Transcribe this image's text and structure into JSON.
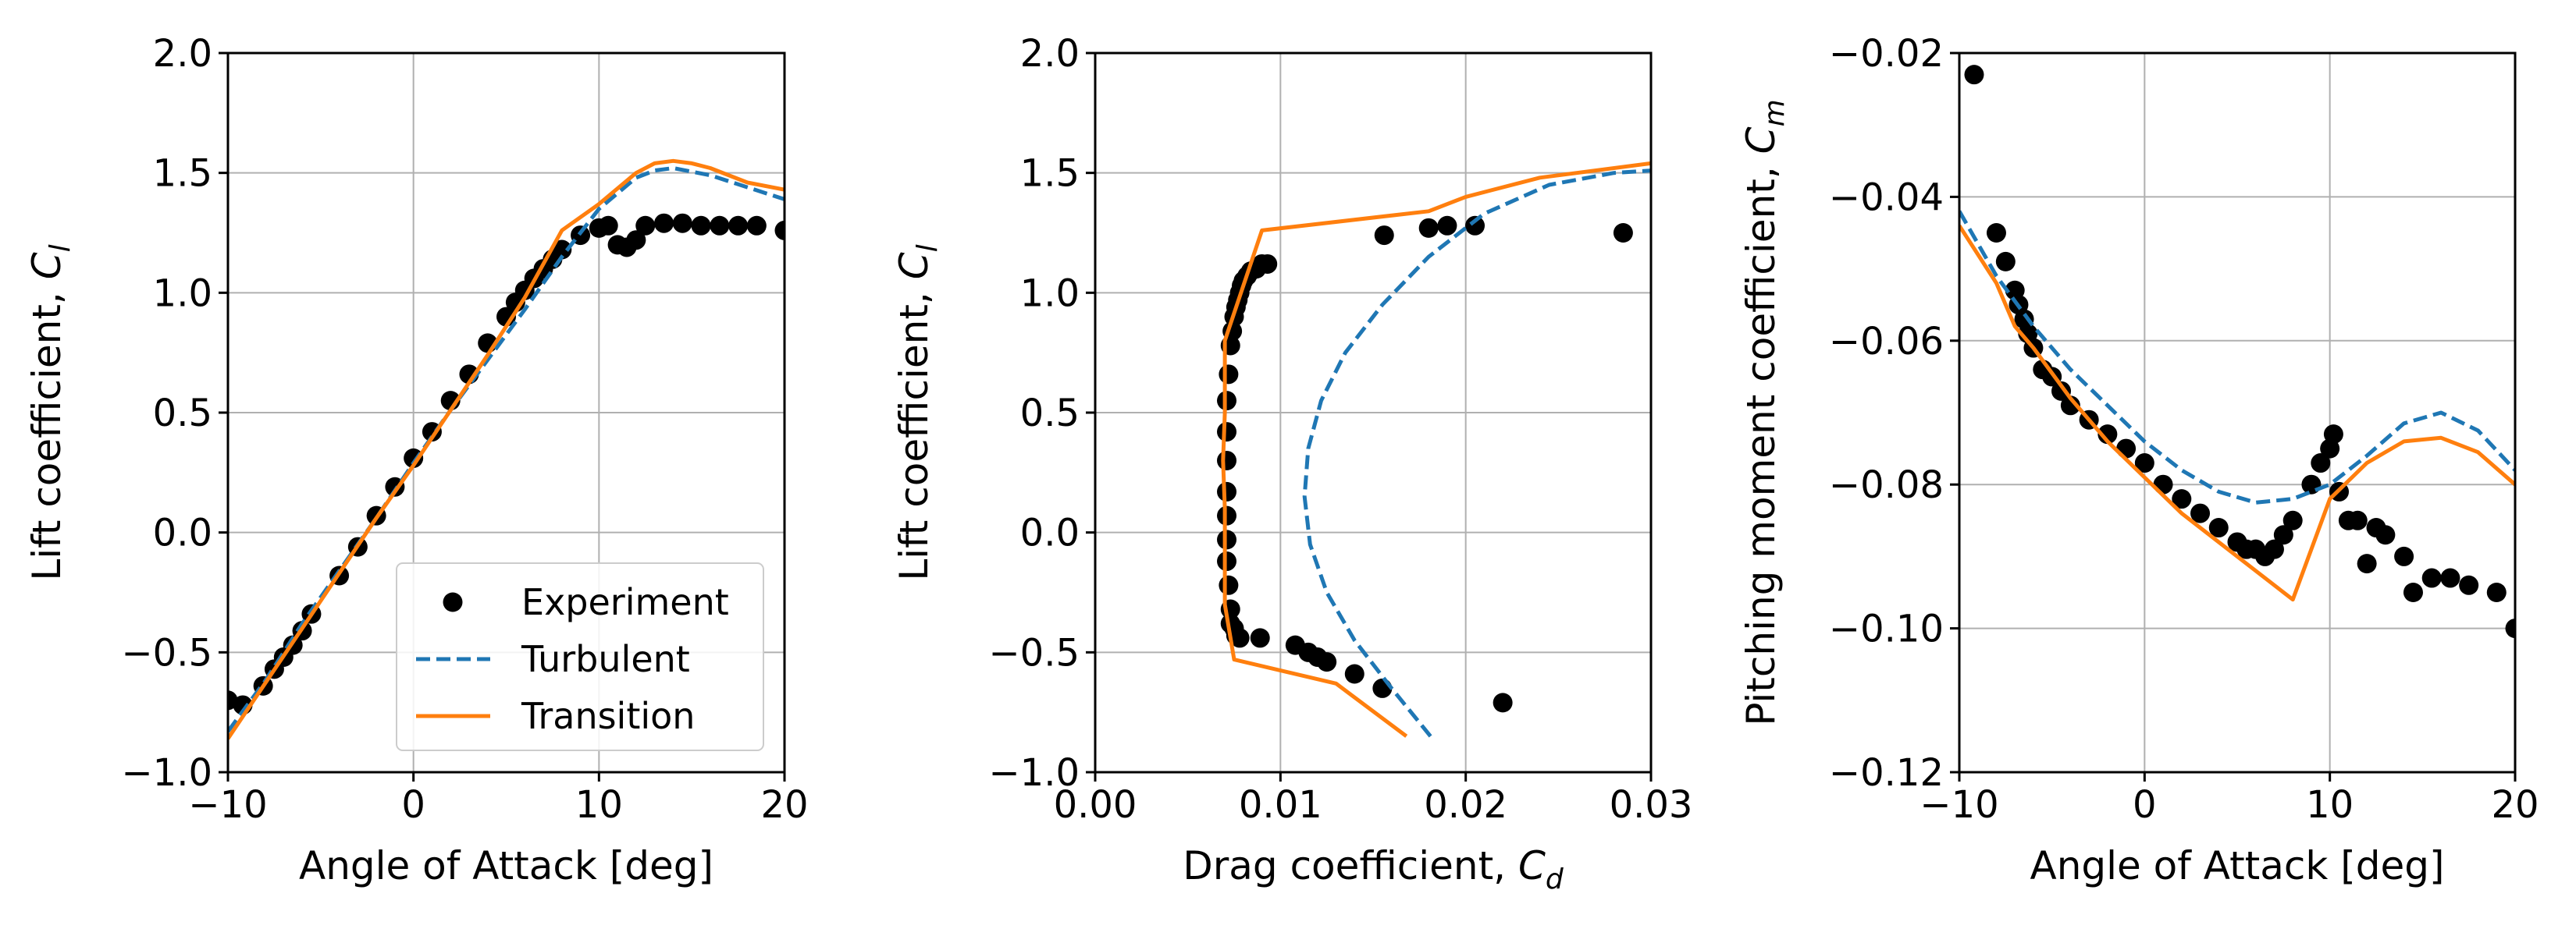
{
  "chart_data": [
    {
      "type": "line",
      "xlabel": "Angle of Attack [deg]",
      "ylabel": "Lift coefficient, ",
      "ylabel_symbol": "C",
      "ylabel_sub": "l",
      "xlim": [
        -10,
        20
      ],
      "ylim": [
        -1.0,
        2.0
      ],
      "xticks": [
        -10,
        0,
        10,
        20
      ],
      "xtick_labels": [
        "−10",
        "0",
        "10",
        "20"
      ],
      "yticks": [
        -1.0,
        -0.5,
        0.0,
        0.5,
        1.0,
        1.5,
        2.0
      ],
      "ytick_labels": [
        "−1.0",
        "−0.5",
        "0.0",
        "0.5",
        "1.0",
        "1.5",
        "2.0"
      ],
      "grid": true,
      "legend": {
        "position": "lower-right",
        "entries": [
          "Experiment",
          "Turbulent",
          "Transition"
        ]
      },
      "series": [
        {
          "name": "Experiment",
          "style": "markers",
          "color": "#000000",
          "x": [
            -10.0,
            -9.2,
            -8.1,
            -7.5,
            -7.0,
            -6.5,
            -6.0,
            -5.5,
            -4.0,
            -3.0,
            -2.0,
            -1.0,
            0.0,
            1.0,
            2.0,
            3.0,
            4.0,
            5.0,
            5.5,
            6.0,
            6.5,
            7.0,
            7.5,
            8.0,
            9.0,
            10.0,
            10.5,
            11.0,
            11.5,
            12.0,
            12.5,
            13.5,
            14.5,
            15.5,
            16.5,
            17.5,
            18.5,
            20.0
          ],
          "y": [
            -0.7,
            -0.72,
            -0.64,
            -0.57,
            -0.52,
            -0.47,
            -0.41,
            -0.34,
            -0.18,
            -0.06,
            0.07,
            0.19,
            0.31,
            0.42,
            0.55,
            0.66,
            0.79,
            0.9,
            0.96,
            1.01,
            1.06,
            1.1,
            1.14,
            1.18,
            1.24,
            1.27,
            1.28,
            1.2,
            1.19,
            1.22,
            1.28,
            1.29,
            1.29,
            1.28,
            1.28,
            1.28,
            1.28,
            1.26
          ]
        },
        {
          "name": "Turbulent",
          "style": "dashed",
          "color": "#1f77b4",
          "x": [
            -10,
            -8,
            -6,
            -4,
            -2,
            0,
            2,
            4,
            6,
            8,
            10,
            12,
            13,
            14,
            16,
            18,
            20
          ],
          "y": [
            -0.83,
            -0.62,
            -0.38,
            -0.16,
            0.06,
            0.29,
            0.51,
            0.72,
            0.93,
            1.15,
            1.35,
            1.48,
            1.51,
            1.52,
            1.49,
            1.44,
            1.39
          ]
        },
        {
          "name": "Transition",
          "style": "solid",
          "color": "#ff7f0e",
          "x": [
            -10,
            -8,
            -6,
            -4,
            -2,
            0,
            2,
            4,
            6,
            8,
            10,
            12,
            13,
            14,
            15,
            16,
            18,
            20
          ],
          "y": [
            -0.86,
            -0.63,
            -0.4,
            -0.17,
            0.06,
            0.28,
            0.51,
            0.74,
            0.98,
            1.26,
            1.37,
            1.5,
            1.54,
            1.55,
            1.54,
            1.52,
            1.46,
            1.43
          ]
        }
      ]
    },
    {
      "type": "line",
      "xlabel": "Drag coefficient, ",
      "xlabel_symbol": "C",
      "xlabel_sub": "d",
      "ylabel": "Lift coefficient, ",
      "ylabel_symbol": "C",
      "ylabel_sub": "l",
      "xlim": [
        0.0,
        0.03
      ],
      "ylim": [
        -1.0,
        2.0
      ],
      "xticks": [
        0.0,
        0.01,
        0.02,
        0.03
      ],
      "xtick_labels": [
        "0.00",
        "0.01",
        "0.02",
        "0.03"
      ],
      "yticks": [
        -1.0,
        -0.5,
        0.0,
        0.5,
        1.0,
        1.5,
        2.0
      ],
      "ytick_labels": [
        "−1.0",
        "−0.5",
        "0.0",
        "0.5",
        "1.0",
        "1.5",
        "2.0"
      ],
      "grid": true,
      "series": [
        {
          "name": "Experiment",
          "style": "markers",
          "color": "#000000",
          "x": [
            0.0073,
            0.0073,
            0.0072,
            0.0071,
            0.0071,
            0.0071,
            0.0071,
            0.0071,
            0.0071,
            0.0071,
            0.0072,
            0.0073,
            0.0074,
            0.0075,
            0.0076,
            0.0077,
            0.0078,
            0.0079,
            0.008,
            0.0082,
            0.0084,
            0.0087,
            0.009,
            0.0093,
            0.0075,
            0.0076,
            0.0078,
            0.0089,
            0.0108,
            0.0115,
            0.012,
            0.0125,
            0.014,
            0.0155,
            0.0156,
            0.018,
            0.019,
            0.0205,
            0.022,
            0.0285
          ],
          "y": [
            -0.38,
            -0.32,
            -0.22,
            -0.12,
            -0.03,
            0.07,
            0.17,
            0.3,
            0.42,
            0.55,
            0.66,
            0.78,
            0.84,
            0.9,
            0.94,
            0.97,
            1.0,
            1.03,
            1.05,
            1.07,
            1.09,
            1.1,
            1.12,
            1.12,
            -0.4,
            -0.43,
            -0.44,
            -0.44,
            -0.47,
            -0.5,
            -0.52,
            -0.54,
            -0.59,
            -0.65,
            1.24,
            1.27,
            1.28,
            1.28,
            -0.71,
            1.25
          ]
        },
        {
          "name": "Turbulent",
          "style": "dashed",
          "color": "#1f77b4",
          "x": [
            0.0181,
            0.016,
            0.014,
            0.0125,
            0.0116,
            0.0113,
            0.0115,
            0.0122,
            0.0135,
            0.0155,
            0.018,
            0.021,
            0.0245,
            0.028,
            0.03
          ],
          "y": [
            -0.85,
            -0.65,
            -0.45,
            -0.25,
            -0.05,
            0.15,
            0.35,
            0.55,
            0.75,
            0.95,
            1.15,
            1.33,
            1.45,
            1.5,
            1.51
          ]
        },
        {
          "name": "Transition",
          "style": "solid",
          "color": "#ff7f0e",
          "x": [
            0.0168,
            0.013,
            0.0075,
            0.007,
            0.007,
            0.007,
            0.0069,
            0.007,
            0.007,
            0.009,
            0.018,
            0.02,
            0.024,
            0.03
          ],
          "y": [
            -0.85,
            -0.63,
            -0.53,
            -0.3,
            -0.1,
            0.1,
            0.3,
            0.5,
            0.8,
            1.26,
            1.34,
            1.4,
            1.48,
            1.54
          ]
        }
      ]
    },
    {
      "type": "line",
      "xlabel": "Angle of Attack [deg]",
      "ylabel": "Pitching moment coefficient, ",
      "ylabel_symbol": "C",
      "ylabel_sub": "m",
      "xlim": [
        -10,
        20
      ],
      "ylim": [
        -0.12,
        -0.02
      ],
      "xticks": [
        -10,
        0,
        10,
        20
      ],
      "xtick_labels": [
        "−10",
        "0",
        "10",
        "20"
      ],
      "yticks": [
        -0.12,
        -0.1,
        -0.08,
        -0.06,
        -0.04,
        -0.02
      ],
      "ytick_labels": [
        "−0.12",
        "−0.10",
        "−0.08",
        "−0.06",
        "−0.04",
        "−0.02"
      ],
      "grid": true,
      "series": [
        {
          "name": "Experiment",
          "style": "markers",
          "color": "#000000",
          "x": [
            -9.2,
            -8.0,
            -7.5,
            -7.0,
            -6.8,
            -6.5,
            -6.3,
            -6.0,
            -5.5,
            -5.0,
            -4.5,
            -4.0,
            -3.0,
            -2.0,
            -1.0,
            0.0,
            1.0,
            2.0,
            3.0,
            4.0,
            5.0,
            5.5,
            6.0,
            6.5,
            7.0,
            7.5,
            8.0,
            9.0,
            9.5,
            10.0,
            10.2,
            10.5,
            11.0,
            11.5,
            12.0,
            12.5,
            13.0,
            14.0,
            14.5,
            15.5,
            16.5,
            17.5,
            19.0,
            20.0
          ],
          "y": [
            -0.023,
            -0.045,
            -0.049,
            -0.053,
            -0.055,
            -0.057,
            -0.059,
            -0.061,
            -0.064,
            -0.065,
            -0.067,
            -0.069,
            -0.071,
            -0.073,
            -0.075,
            -0.077,
            -0.08,
            -0.082,
            -0.084,
            -0.086,
            -0.088,
            -0.089,
            -0.089,
            -0.09,
            -0.089,
            -0.087,
            -0.085,
            -0.08,
            -0.077,
            -0.075,
            -0.073,
            -0.081,
            -0.085,
            -0.085,
            -0.091,
            -0.086,
            -0.087,
            -0.09,
            -0.095,
            -0.093,
            -0.093,
            -0.094,
            -0.095,
            -0.1
          ]
        },
        {
          "name": "Turbulent",
          "style": "dashed",
          "color": "#1f77b4",
          "x": [
            -10,
            -8,
            -6,
            -4,
            -2,
            0,
            2,
            4,
            6,
            8,
            10,
            12,
            14,
            16,
            18,
            20
          ],
          "y": [
            -0.042,
            -0.051,
            -0.058,
            -0.064,
            -0.069,
            -0.074,
            -0.078,
            -0.081,
            -0.0825,
            -0.082,
            -0.08,
            -0.076,
            -0.0715,
            -0.07,
            -0.0725,
            -0.078
          ]
        },
        {
          "name": "Transition",
          "style": "solid",
          "color": "#ff7f0e",
          "x": [
            -10,
            -8,
            -7,
            -6,
            -4,
            -2,
            0,
            2,
            4,
            6,
            8,
            10,
            12,
            14,
            16,
            18,
            20
          ],
          "y": [
            -0.044,
            -0.052,
            -0.058,
            -0.061,
            -0.068,
            -0.074,
            -0.079,
            -0.084,
            -0.088,
            -0.092,
            -0.096,
            -0.082,
            -0.077,
            -0.074,
            -0.0735,
            -0.0755,
            -0.08
          ]
        }
      ]
    }
  ]
}
